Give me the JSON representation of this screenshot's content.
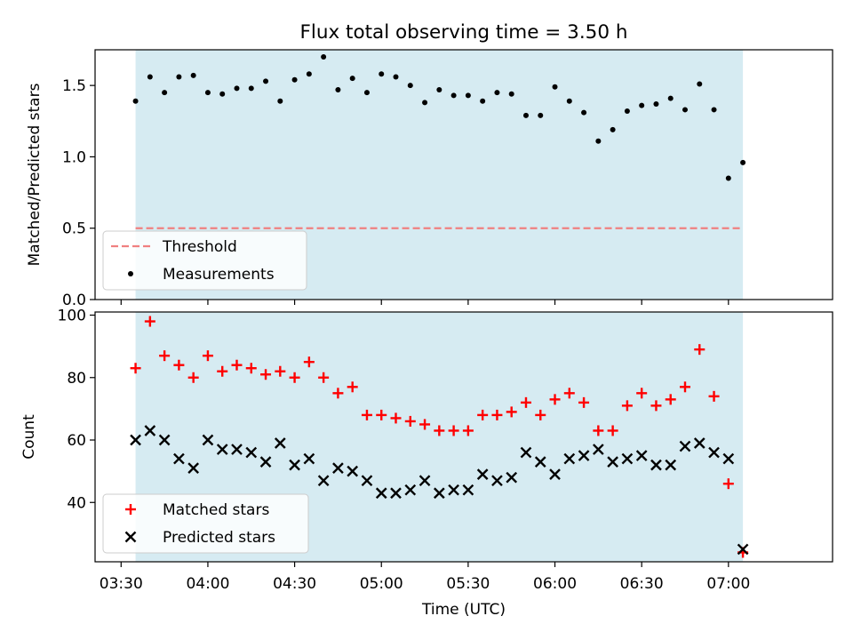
{
  "figure": {
    "title": "Flux total observing time = 3.50 h",
    "xlabel": "Time (UTC)",
    "background_color": "#ffffff",
    "span_color": "#add8e6"
  },
  "chart_data": [
    {
      "type": "scatter",
      "ylabel": "Matched/Predicted stars",
      "ylim": [
        0,
        1.75
      ],
      "yticks": [
        0.0,
        0.5,
        1.0,
        1.5
      ],
      "ytick_labels": [
        "0.0",
        "0.5",
        "1.0",
        "1.5"
      ],
      "shaded_span": [
        "03:35",
        "07:05"
      ],
      "legend_position": "lower-left",
      "threshold": {
        "name": "Threshold",
        "value": 0.5,
        "color": "#f08080",
        "style": "dashed"
      },
      "series": [
        {
          "name": "Measurements",
          "color": "#000000",
          "marker": "dot",
          "x": [
            "03:35",
            "03:40",
            "03:45",
            "03:50",
            "03:55",
            "04:00",
            "04:05",
            "04:10",
            "04:15",
            "04:20",
            "04:25",
            "04:30",
            "04:35",
            "04:40",
            "04:45",
            "04:50",
            "04:55",
            "05:00",
            "05:05",
            "05:10",
            "05:15",
            "05:20",
            "05:25",
            "05:30",
            "05:35",
            "05:40",
            "05:45",
            "05:50",
            "05:55",
            "06:00",
            "06:05",
            "06:10",
            "06:15",
            "06:20",
            "06:25",
            "06:30",
            "06:35",
            "06:40",
            "06:45",
            "06:50",
            "06:55",
            "07:00",
            "07:05"
          ],
          "y": [
            1.39,
            1.56,
            1.45,
            1.56,
            1.57,
            1.45,
            1.44,
            1.48,
            1.48,
            1.53,
            1.39,
            1.54,
            1.58,
            1.7,
            1.47,
            1.55,
            1.45,
            1.58,
            1.56,
            1.5,
            1.38,
            1.47,
            1.43,
            1.43,
            1.39,
            1.45,
            1.44,
            1.29,
            1.29,
            1.49,
            1.39,
            1.31,
            1.11,
            1.19,
            1.32,
            1.36,
            1.37,
            1.41,
            1.33,
            1.51,
            1.33,
            0.85,
            0.96
          ]
        }
      ]
    },
    {
      "type": "scatter",
      "ylabel": "Count",
      "ylim": [
        21,
        101
      ],
      "yticks": [
        40,
        60,
        80,
        100
      ],
      "ytick_labels": [
        "40",
        "60",
        "80",
        "100"
      ],
      "xlim": [
        "03:21",
        "07:36"
      ],
      "xticks": [
        "03:30",
        "04:00",
        "04:30",
        "05:00",
        "05:30",
        "06:00",
        "06:30",
        "07:00"
      ],
      "xtick_labels": [
        "03:30",
        "04:00",
        "04:30",
        "05:00",
        "05:30",
        "06:00",
        "06:30",
        "07:00"
      ],
      "shaded_span": [
        "03:35",
        "07:05"
      ],
      "legend_position": "lower-left",
      "series": [
        {
          "name": "Matched stars",
          "color": "#ff0000",
          "marker": "plus",
          "x": [
            "03:35",
            "03:40",
            "03:45",
            "03:50",
            "03:55",
            "04:00",
            "04:05",
            "04:10",
            "04:15",
            "04:20",
            "04:25",
            "04:30",
            "04:35",
            "04:40",
            "04:45",
            "04:50",
            "04:55",
            "05:00",
            "05:05",
            "05:10",
            "05:15",
            "05:20",
            "05:25",
            "05:30",
            "05:35",
            "05:40",
            "05:45",
            "05:50",
            "05:55",
            "06:00",
            "06:05",
            "06:10",
            "06:15",
            "06:20",
            "06:25",
            "06:30",
            "06:35",
            "06:40",
            "06:45",
            "06:50",
            "06:55",
            "07:00",
            "07:05"
          ],
          "y": [
            83,
            98,
            87,
            84,
            80,
            87,
            82,
            84,
            83,
            81,
            82,
            80,
            85,
            80,
            75,
            77,
            68,
            68,
            67,
            66,
            65,
            63,
            63,
            63,
            68,
            68,
            69,
            72,
            68,
            73,
            75,
            72,
            63,
            63,
            71,
            75,
            71,
            73,
            77,
            89,
            74,
            46,
            24
          ]
        },
        {
          "name": "Predicted stars",
          "color": "#000000",
          "marker": "x",
          "x": [
            "03:35",
            "03:40",
            "03:45",
            "03:50",
            "03:55",
            "04:00",
            "04:05",
            "04:10",
            "04:15",
            "04:20",
            "04:25",
            "04:30",
            "04:35",
            "04:40",
            "04:45",
            "04:50",
            "04:55",
            "05:00",
            "05:05",
            "05:10",
            "05:15",
            "05:20",
            "05:25",
            "05:30",
            "05:35",
            "05:40",
            "05:45",
            "05:50",
            "05:55",
            "06:00",
            "06:05",
            "06:10",
            "06:15",
            "06:20",
            "06:25",
            "06:30",
            "06:35",
            "06:40",
            "06:45",
            "06:50",
            "06:55",
            "07:00",
            "07:05"
          ],
          "y": [
            60,
            63,
            60,
            54,
            51,
            60,
            57,
            57,
            56,
            53,
            59,
            52,
            54,
            47,
            51,
            50,
            47,
            43,
            43,
            44,
            47,
            43,
            44,
            44,
            49,
            47,
            48,
            56,
            53,
            49,
            54,
            55,
            57,
            53,
            54,
            55,
            52,
            52,
            58,
            59,
            56,
            54,
            25
          ]
        }
      ]
    }
  ]
}
